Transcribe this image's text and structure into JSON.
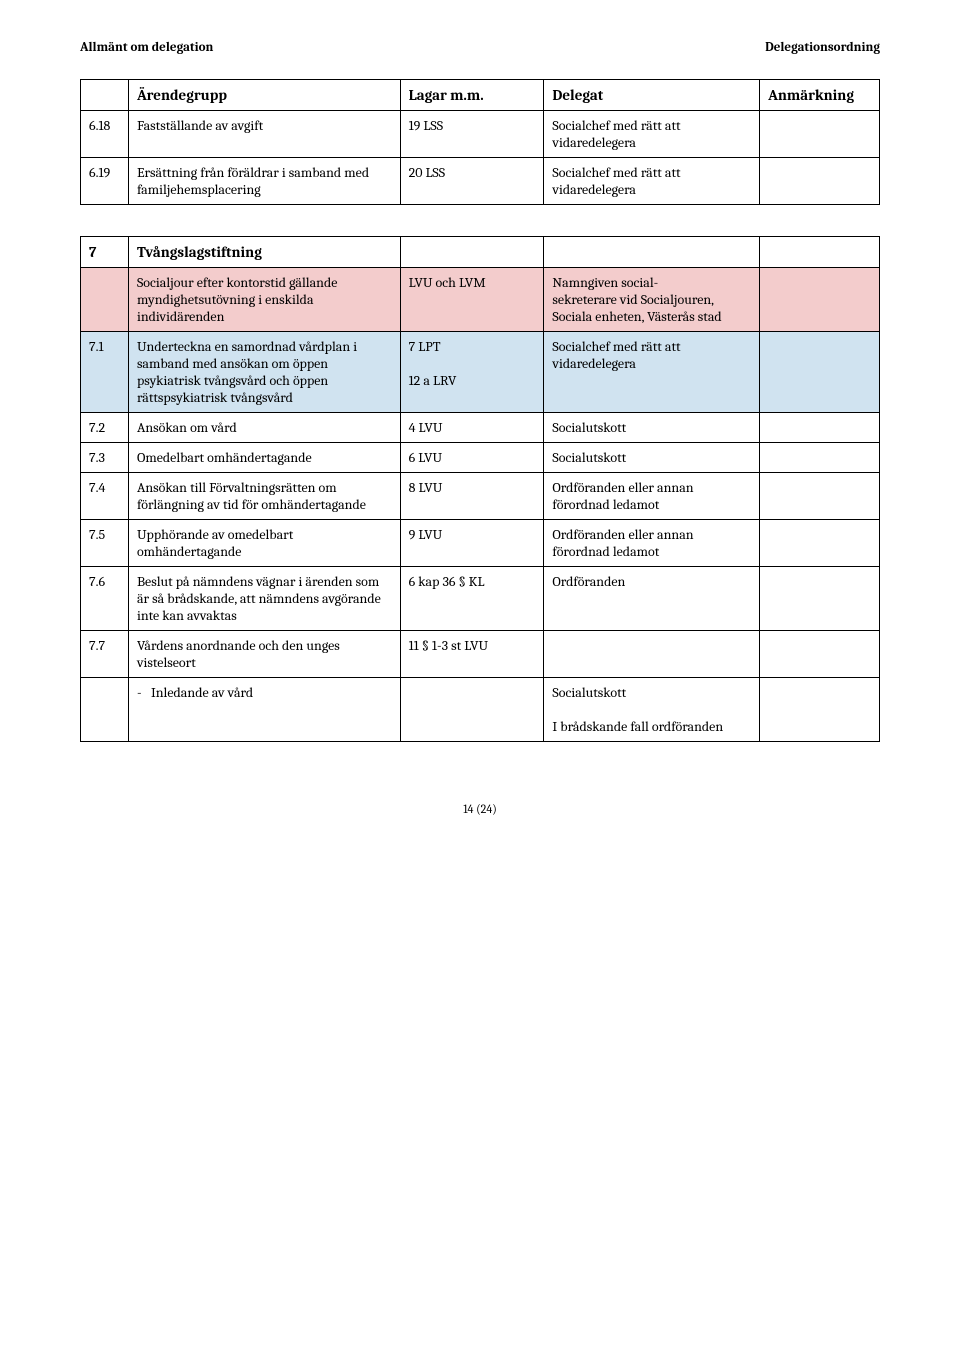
{
  "header": {
    "left": "Allmänt om delegation",
    "right": "Delegationsordning"
  },
  "columns": {
    "arende": "Ärendegrupp",
    "lagar": "Lagar m.m.",
    "delegat": "Delegat",
    "anm": "Anmärkning"
  },
  "rows": {
    "r0": {
      "num": "6.18",
      "arende": "Fastställande av avgift",
      "lagar": "19 LSS",
      "delegat": "Socialchef med rätt att vidaredelegera",
      "anm": ""
    },
    "r1": {
      "num": "6.19",
      "arende": "Ersättning från föräldrar i samband med familjehemsplacering",
      "lagar": "20 LSS",
      "delegat": "Socialchef med rätt att vidaredelegera",
      "anm": ""
    },
    "r2": {
      "num": "7",
      "arende": "Tvångslagstiftning",
      "lagar": "",
      "delegat": "",
      "anm": ""
    },
    "r3": {
      "num": "",
      "arende": "Socialjour efter kontorstid gällande myndighetsutövning i enskilda individärenden",
      "lagar": "LVU och LVM",
      "delegat": "Namngiven social-\nsekreterare vid Socialjouren, Sociala enheten, Västerås stad",
      "anm": ""
    },
    "r4": {
      "num": "7.1",
      "arende": "Underteckna en samordnad vårdplan i samband med ansökan om öppen psykiatrisk tvångsvård och öppen rättspsykiatrisk tvångsvård",
      "lagar": "7 LPT\n\n12 a LRV",
      "delegat": "Socialchef med rätt att vidaredelegera",
      "anm": ""
    },
    "r5": {
      "num": "7.2",
      "arende": "Ansökan om vård",
      "lagar": "4 LVU",
      "delegat": "Socialutskott",
      "anm": ""
    },
    "r6": {
      "num": "7.3",
      "arende": "Omedelbart omhändertagande",
      "lagar": "6 LVU",
      "delegat": "Socialutskott",
      "anm": ""
    },
    "r7": {
      "num": "7.4",
      "arende": "Ansökan till Förvaltningsrätten om förlängning av tid för omhändertagande",
      "lagar": "8 LVU",
      "delegat": "Ordföranden eller annan förordnad ledamot",
      "anm": ""
    },
    "r8": {
      "num": "7.5",
      "arende": "Upphörande av omedelbart omhändertagande",
      "lagar": "9 LVU",
      "delegat": "Ordföranden eller annan förordnad ledamot",
      "anm": ""
    },
    "r9": {
      "num": "7.6",
      "arende": "Beslut på nämndens vägnar i ärenden som är så brådskande, att nämndens avgörande inte kan avvaktas",
      "lagar": "6 kap 36 § KL",
      "delegat": "Ordföranden",
      "anm": ""
    },
    "r10": {
      "num": "7.7",
      "arende": "Vårdens anordnande och den unges vistelseort",
      "lagar": "11 § 1-3 st LVU",
      "delegat": "",
      "anm": ""
    },
    "r11": {
      "num": "",
      "arende": "Inledande av vård",
      "lagar": "",
      "delegat": "Socialutskott\n\nI brådskande fall ordföranden",
      "anm": ""
    }
  },
  "footer": {
    "page": "14 (24)"
  }
}
